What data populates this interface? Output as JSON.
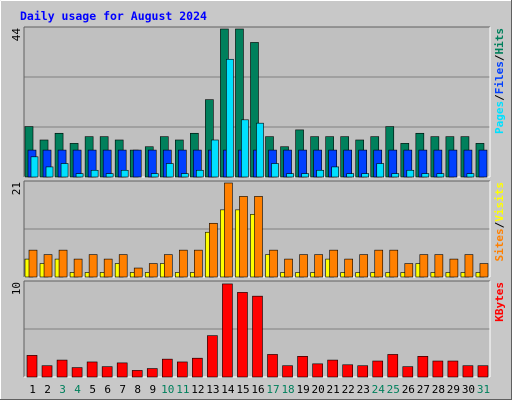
{
  "title": "Daily usage for August 2024",
  "colors": {
    "background": "#c8c8c8",
    "plot_background": "#c0c0c0",
    "gridline": "#808080",
    "title": "#0000ff",
    "hits": "#00805c",
    "files": "#0040ff",
    "pages": "#00e0ff",
    "visits": "#ff8000",
    "sites": "#ffff00",
    "kbytes": "#ff0000",
    "weekday_label": "#000000",
    "weekend_label": "#00805c"
  },
  "chart_data": [
    {
      "type": "bar",
      "name": "hits-files-pages",
      "axis_max_label": "44",
      "ylim": [
        0,
        44
      ],
      "legend": {
        "hits": "Hits",
        "files": "Files",
        "pages": "Pages",
        "sep": "/"
      },
      "categories": [
        "1",
        "2",
        "3",
        "4",
        "5",
        "6",
        "7",
        "8",
        "9",
        "10",
        "11",
        "12",
        "13",
        "14",
        "15",
        "16",
        "17",
        "18",
        "19",
        "20",
        "21",
        "22",
        "23",
        "24",
        "25",
        "26",
        "27",
        "28",
        "29",
        "30",
        "31"
      ],
      "series": [
        {
          "name": "Hits",
          "values": [
            15,
            11,
            13,
            10,
            12,
            12,
            11,
            8,
            9,
            12,
            11,
            13,
            23,
            44,
            44,
            40,
            12,
            9,
            14,
            12,
            12,
            12,
            11,
            12,
            15,
            10,
            13,
            12,
            12,
            12,
            10
          ]
        },
        {
          "name": "Files",
          "values": [
            8,
            8,
            8,
            8,
            8,
            8,
            8,
            8,
            8,
            8,
            8,
            8,
            8,
            8,
            8,
            8,
            8,
            8,
            8,
            8,
            8,
            8,
            8,
            8,
            8,
            8,
            8,
            8,
            8,
            8,
            8
          ]
        },
        {
          "name": "Pages",
          "values": [
            6,
            3,
            4,
            1,
            2,
            1,
            2,
            0,
            1,
            4,
            1,
            2,
            11,
            35,
            17,
            16,
            4,
            1,
            1,
            2,
            3,
            1,
            1,
            4,
            1,
            2,
            1,
            1,
            0,
            1,
            0
          ]
        }
      ]
    },
    {
      "type": "bar",
      "name": "visits-sites",
      "axis_max_label": "21",
      "ylim": [
        0,
        21
      ],
      "legend": {
        "visits": "Visits",
        "sites": "Sites",
        "sep": "/"
      },
      "categories": [
        "1",
        "2",
        "3",
        "4",
        "5",
        "6",
        "7",
        "8",
        "9",
        "10",
        "11",
        "12",
        "13",
        "14",
        "15",
        "16",
        "17",
        "18",
        "19",
        "20",
        "21",
        "22",
        "23",
        "24",
        "25",
        "26",
        "27",
        "28",
        "29",
        "30",
        "31"
      ],
      "series": [
        {
          "name": "Visits",
          "values": [
            6,
            5,
            6,
            4,
            5,
            4,
            5,
            2,
            3,
            5,
            6,
            6,
            12,
            21,
            18,
            18,
            6,
            4,
            5,
            5,
            6,
            4,
            5,
            6,
            6,
            3,
            5,
            5,
            4,
            5,
            3
          ]
        },
        {
          "name": "Sites",
          "values": [
            4,
            3,
            4,
            1,
            1,
            1,
            3,
            1,
            1,
            3,
            1,
            1,
            10,
            15,
            15,
            14,
            5,
            1,
            1,
            1,
            4,
            1,
            1,
            1,
            1,
            1,
            3,
            1,
            1,
            1,
            1
          ]
        }
      ]
    },
    {
      "type": "bar",
      "name": "kbytes",
      "axis_max_label": "10",
      "ylim": [
        0,
        10
      ],
      "legend": {
        "kbytes": "KBytes"
      },
      "categories": [
        "1",
        "2",
        "3",
        "4",
        "5",
        "6",
        "7",
        "8",
        "9",
        "10",
        "11",
        "12",
        "13",
        "14",
        "15",
        "16",
        "17",
        "18",
        "19",
        "20",
        "21",
        "22",
        "23",
        "24",
        "25",
        "26",
        "27",
        "28",
        "29",
        "30",
        "31"
      ],
      "series": [
        {
          "name": "KBytes",
          "values": [
            2.3,
            1.2,
            1.8,
            1.0,
            1.6,
            1.1,
            1.5,
            0.7,
            0.9,
            1.9,
            1.6,
            2.0,
            4.4,
            9.9,
            9.0,
            8.6,
            2.4,
            1.2,
            2.2,
            1.4,
            1.8,
            1.3,
            1.2,
            1.7,
            2.4,
            1.1,
            2.2,
            1.7,
            1.7,
            1.2,
            1.2
          ]
        }
      ]
    }
  ],
  "x_axis": {
    "labels": [
      "1",
      "2",
      "3",
      "4",
      "5",
      "6",
      "7",
      "8",
      "9",
      "10",
      "11",
      "12",
      "13",
      "14",
      "15",
      "16",
      "17",
      "18",
      "19",
      "20",
      "21",
      "22",
      "23",
      "24",
      "25",
      "26",
      "27",
      "28",
      "29",
      "30",
      "31"
    ],
    "weekend_days": [
      "3",
      "4",
      "10",
      "11",
      "17",
      "18",
      "24",
      "25",
      "31"
    ]
  }
}
